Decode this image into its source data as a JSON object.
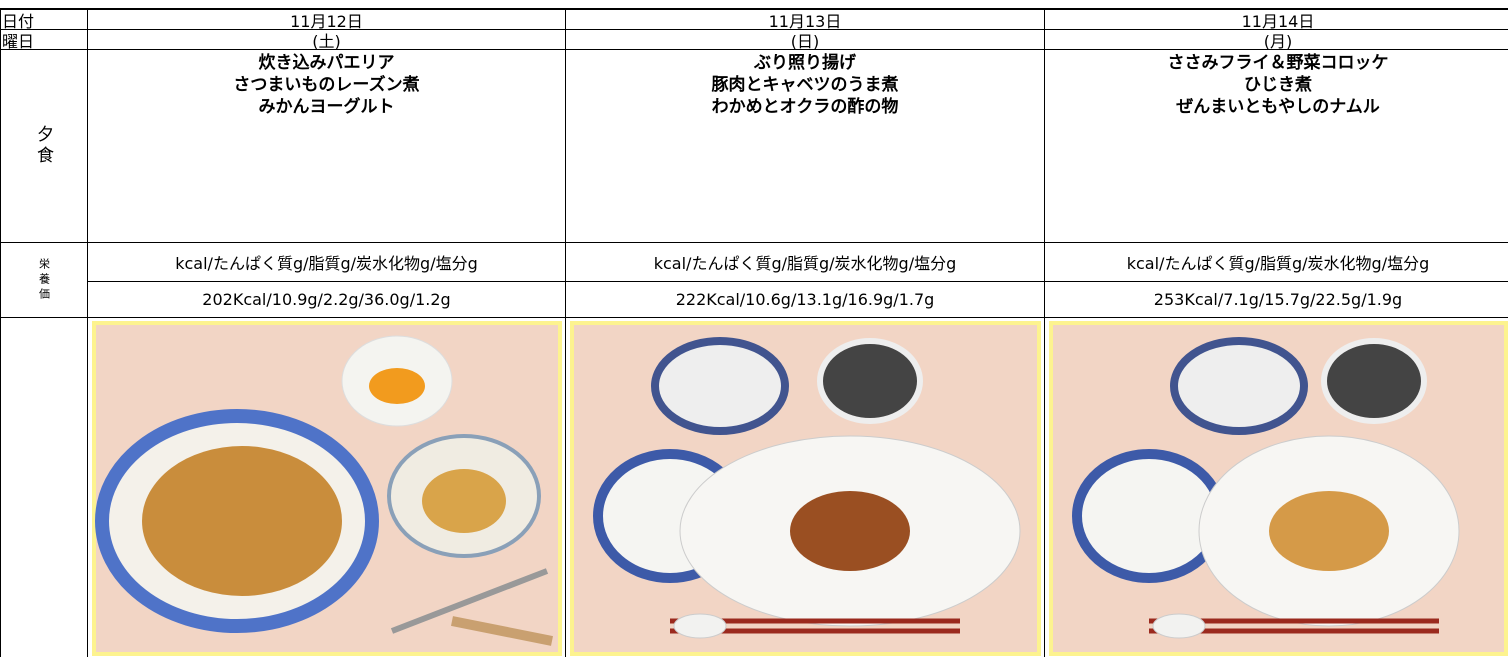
{
  "labels": {
    "date": "日付",
    "weekday": "曜日",
    "dinner": "夕食",
    "nutrition": "栄養価"
  },
  "days": [
    {
      "date": "11月12日",
      "weekday": "(土)",
      "dishes": [
        "炊き込みパエリア",
        "さつまいものレーズン煮",
        "みかんヨーグルト"
      ],
      "nutrition_header": "kcal/たんぱく質g/脂質g/炭水化物g/塩分g",
      "nutrition": "202Kcal/10.9g/2.2g/36.0g/1.2g"
    },
    {
      "date": "11月13日",
      "weekday": "(日)",
      "dishes": [
        "ぶり照り揚げ",
        "豚肉とキャベツのうま煮",
        "わかめとオクラの酢の物"
      ],
      "nutrition_header": "kcal/たんぱく質g/脂質g/炭水化物g/塩分g",
      "nutrition": "222Kcal/10.6g/13.1g/16.9g/1.7g"
    },
    {
      "date": "11月14日",
      "weekday": "(月)",
      "dishes": [
        "ささみフライ＆野菜コロッケ",
        "ひじき煮",
        "ぜんまいともやしのナムル"
      ],
      "nutrition_header": "kcal/たんぱく質g/脂質g/炭水化物g/塩分g",
      "nutrition": "253Kcal/7.1g/15.7g/22.5g/1.9g"
    }
  ]
}
